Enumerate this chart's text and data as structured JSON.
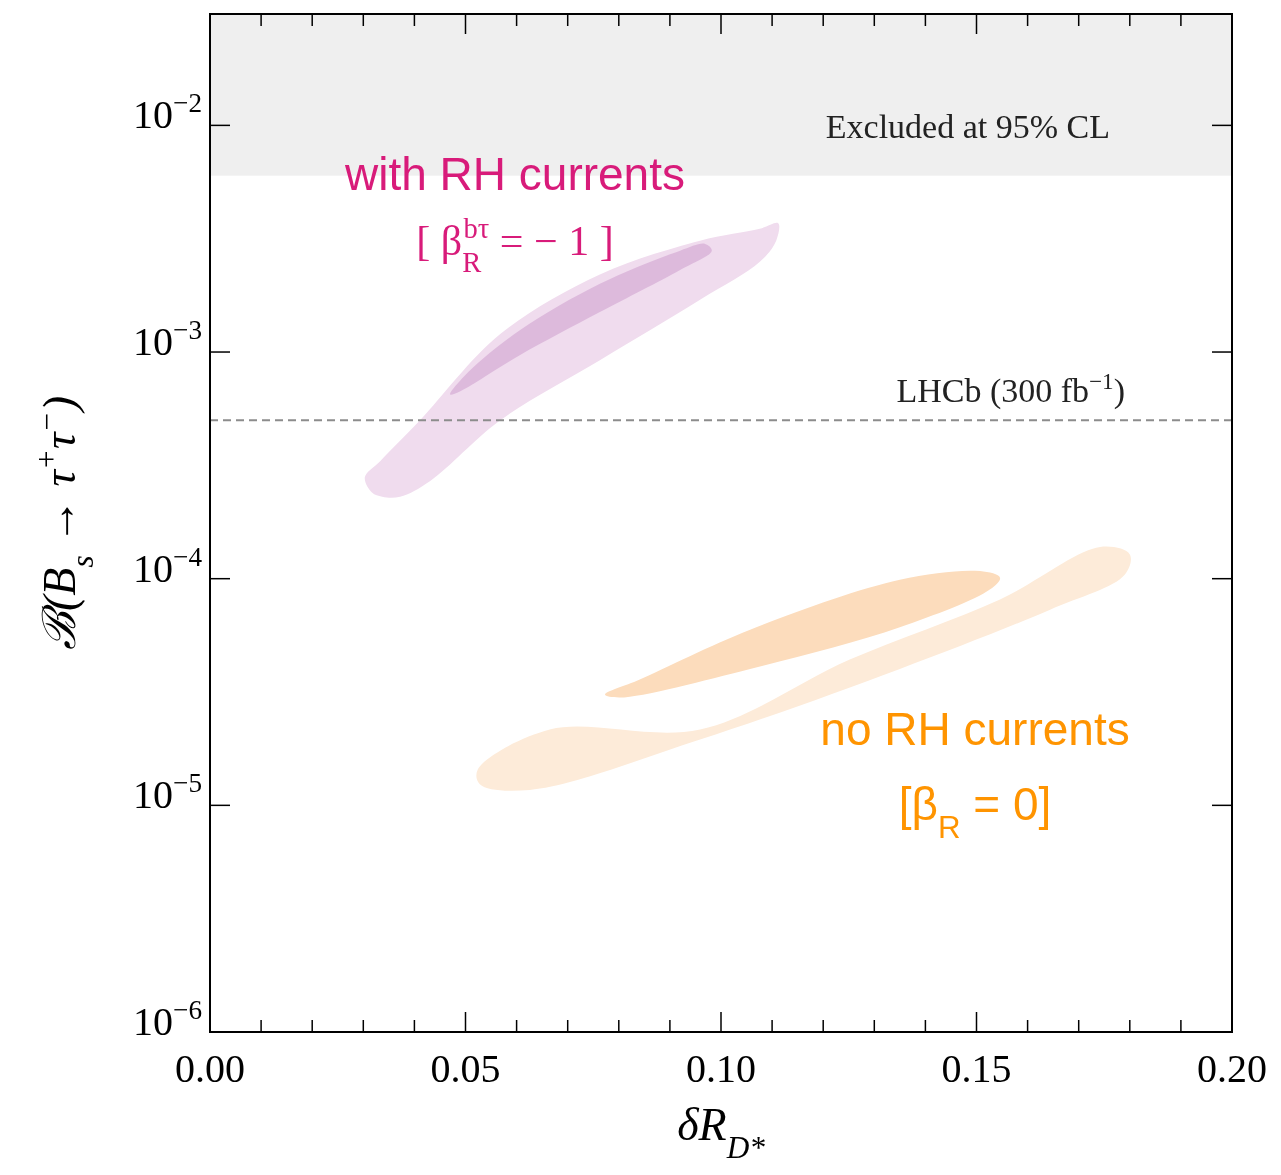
{
  "chart_data": {
    "type": "area",
    "xlabel": "δR$_{D*}$",
    "ylabel": "ℬ(B$_{s}$ → τ$^{+}$τ$^{−}$)",
    "log": "y",
    "grid": false,
    "xlim": [
      0,
      0.2
    ],
    "ylim": [
      1e-06,
      0.031
    ],
    "xticks": [
      {
        "value": 0,
        "label": "0.00"
      },
      {
        "value": 0.01,
        "label": null
      },
      {
        "value": 0.02,
        "label": null
      },
      {
        "value": 0.03,
        "label": null
      },
      {
        "value": 0.04,
        "label": null
      },
      {
        "value": 0.05,
        "label": "0.05"
      },
      {
        "value": 0.06,
        "label": null
      },
      {
        "value": 0.07,
        "label": null
      },
      {
        "value": 0.08,
        "label": null
      },
      {
        "value": 0.09,
        "label": null
      },
      {
        "value": 0.1,
        "label": "0.10"
      },
      {
        "value": 0.11,
        "label": null
      },
      {
        "value": 0.12,
        "label": null
      },
      {
        "value": 0.13,
        "label": null
      },
      {
        "value": 0.14,
        "label": null
      },
      {
        "value": 0.15,
        "label": "0.15"
      },
      {
        "value": 0.16,
        "label": null
      },
      {
        "value": 0.17,
        "label": null
      },
      {
        "value": 0.18,
        "label": null
      },
      {
        "value": 0.19,
        "label": null
      },
      {
        "value": 0.2,
        "label": "0.20"
      }
    ],
    "yticks": [
      {
        "value": 1e-06,
        "label": "10$^{−6}$"
      },
      {
        "value": 1e-05,
        "label": "10$^{−5}$"
      },
      {
        "value": 0.0001,
        "label": "10$^{−4}$"
      },
      {
        "value": 0.001,
        "label": "10$^{−3}$"
      },
      {
        "value": 0.01,
        "label": "10$^{−2}$"
      }
    ],
    "bands": [
      {
        "axis": "y",
        "from": 0.006,
        "to": 0.031,
        "label": "Excluded at 95% CL",
        "color": "#efefef"
      }
    ],
    "ref_lines": [
      {
        "axis": "y",
        "value": 0.0005,
        "label": "LHCb (300 fb$^{−1}$)",
        "color": "#8c8c8c",
        "line_style": "dashed"
      }
    ],
    "series": [
      {
        "color": "#f0dcee",
        "x": [
          0.0303,
          0.0317,
          0.0337,
          0.0372,
          0.0431,
          0.0568,
          0.0763,
          0.0959,
          0.1076,
          0.1108,
          0.1112,
          0.1076,
          0.0959,
          0.0763,
          0.0568,
          0.0411,
          0.0333
        ],
        "values": [
          0.00028,
          0.00024,
          0.00023,
          0.00023,
          0.00027,
          0.0005,
          0.00092,
          0.0017,
          0.0025,
          0.0031,
          0.0037,
          0.0035,
          0.0031,
          0.0022,
          0.0012,
          0.0005,
          0.00033
        ]
      },
      {
        "color": "#ddbadc",
        "x": [
          0.047,
          0.0489,
          0.0607,
          0.0763,
          0.092,
          0.0982,
          0.0969,
          0.092,
          0.0763,
          0.0607,
          0.0509
        ],
        "values": [
          0.00065,
          0.00067,
          0.00097,
          0.0015,
          0.0023,
          0.0028,
          0.003,
          0.0028,
          0.002,
          0.00125,
          0.00083
        ]
      },
      {
        "color": "#fdebd9",
        "x": [
          0.0524,
          0.0528,
          0.0626,
          0.0959,
          0.135,
          0.1644,
          0.179,
          0.18,
          0.1742,
          0.1546,
          0.1252,
          0.0959,
          0.0665
        ],
        "values": [
          1.44e-05,
          1.24e-05,
          1.17e-05,
          1.95e-05,
          4e-05,
          7.3e-05,
          0.000104,
          0.000128,
          0.000138,
          8.1e-05,
          4.4e-05,
          2.16e-05,
          2.16e-05
        ]
      },
      {
        "color": "#fcdcbc",
        "x": [
          0.0773,
          0.0802,
          0.1057,
          0.135,
          0.1526,
          0.1546,
          0.1507,
          0.135,
          0.1057,
          0.0841
        ],
        "values": [
          3.08e-05,
          2.99e-05,
          4e-05,
          6.1e-05,
          8.95e-05,
          0.000101,
          0.000108,
          9.9e-05,
          5.96e-05,
          3.59e-05
        ]
      }
    ],
    "annotations": [
      "with RH currents",
      "[ β$_{R}$$^{bτ}$ = − 1 ]",
      "no RH currents",
      "[β$_{R}$ = 0]"
    ]
  }
}
